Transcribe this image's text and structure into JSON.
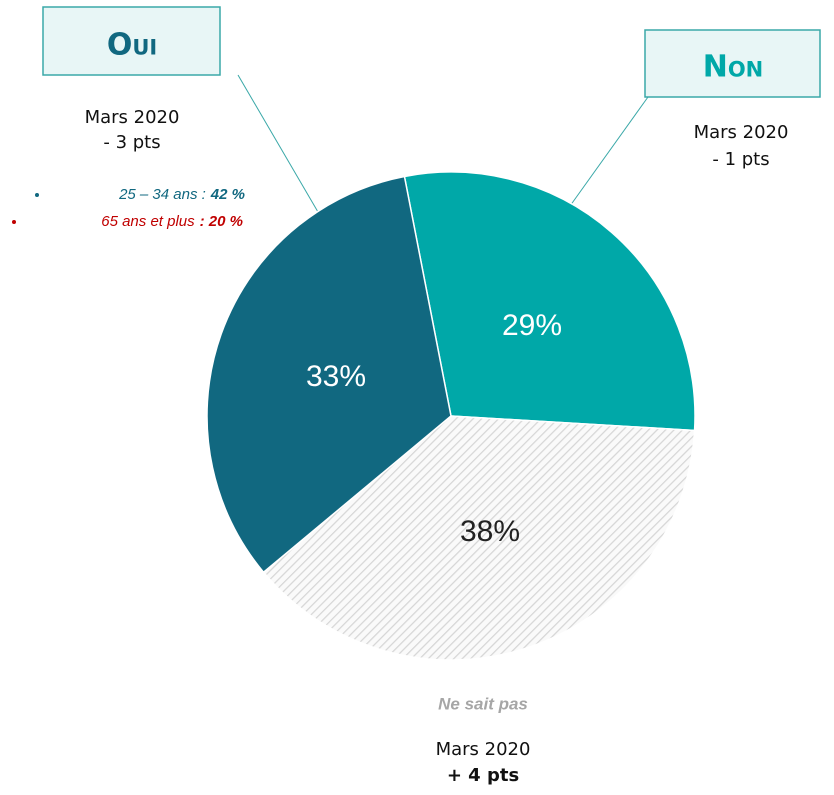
{
  "chart_data": {
    "type": "pie",
    "categories": [
      "Non",
      "Ne sait pas",
      "Oui"
    ],
    "values": [
      29,
      38,
      33
    ],
    "value_labels": [
      "29%",
      "38%",
      "33%"
    ],
    "colors": [
      "#00a8a8",
      "#d9d9d9",
      "#116880"
    ],
    "notes": [
      {
        "period": "Mars 2020",
        "change": "- 1 pts"
      },
      {
        "period": "Mars 2020",
        "change": "+ 4 pts"
      },
      {
        "period": "Mars 2020",
        "change": "- 3 pts"
      }
    ],
    "breakdown": [
      {
        "label": "25 – 34 ans :",
        "value": "42 %",
        "color": "#116880"
      },
      {
        "label": "65 ans et plus",
        "value": ": 20 %",
        "color": "#c00000"
      }
    ]
  }
}
